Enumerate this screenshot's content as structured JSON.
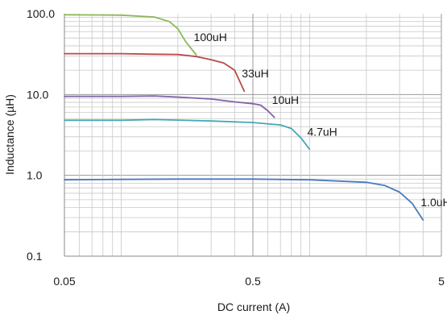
{
  "chart_data": {
    "type": "line",
    "xlabel": "DC current (A)",
    "ylabel": "Inductance (µH)",
    "x_scale": "log",
    "y_scale": "log",
    "xlim": [
      0.05,
      5
    ],
    "ylim": [
      0.1,
      100
    ],
    "x_ticks": [
      {
        "value": 0.05,
        "label": "0.05"
      },
      {
        "value": 0.5,
        "label": "0.5"
      },
      {
        "value": 5,
        "label": "5"
      }
    ],
    "y_ticks": [
      {
        "value": 0.1,
        "label": "0.1"
      },
      {
        "value": 1,
        "label": "1.0"
      },
      {
        "value": 10,
        "label": "10.0"
      },
      {
        "value": 100,
        "label": "100.0"
      }
    ],
    "grid": true,
    "series": [
      {
        "name": "100uH",
        "color": "#8db85a",
        "points": [
          [
            0.05,
            97
          ],
          [
            0.1,
            96
          ],
          [
            0.15,
            91
          ],
          [
            0.18,
            80
          ],
          [
            0.2,
            65
          ],
          [
            0.22,
            45
          ],
          [
            0.25,
            31
          ]
        ]
      },
      {
        "name": "33uH",
        "color": "#b84a48",
        "points": [
          [
            0.05,
            32
          ],
          [
            0.1,
            32
          ],
          [
            0.15,
            31.5
          ],
          [
            0.2,
            31.3
          ],
          [
            0.25,
            29.5
          ],
          [
            0.3,
            27
          ],
          [
            0.35,
            24.5
          ],
          [
            0.4,
            20
          ],
          [
            0.45,
            11
          ]
        ]
      },
      {
        "name": "10uH",
        "color": "#7f62a8",
        "points": [
          [
            0.05,
            9.5
          ],
          [
            0.1,
            9.5
          ],
          [
            0.15,
            9.6
          ],
          [
            0.2,
            9.3
          ],
          [
            0.3,
            8.8
          ],
          [
            0.4,
            8.1
          ],
          [
            0.5,
            7.7
          ],
          [
            0.55,
            7.4
          ],
          [
            0.6,
            6.3
          ],
          [
            0.65,
            5.2
          ]
        ]
      },
      {
        "name": "4.7uH",
        "color": "#44a8b4",
        "points": [
          [
            0.05,
            4.8
          ],
          [
            0.1,
            4.8
          ],
          [
            0.15,
            4.9
          ],
          [
            0.3,
            4.7
          ],
          [
            0.5,
            4.5
          ],
          [
            0.7,
            4.2
          ],
          [
            0.8,
            3.8
          ],
          [
            0.9,
            2.9
          ],
          [
            1.0,
            2.1
          ]
        ]
      },
      {
        "name": "1.0uH",
        "color": "#4a7bbd",
        "points": [
          [
            0.05,
            0.88
          ],
          [
            0.1,
            0.89
          ],
          [
            0.2,
            0.9
          ],
          [
            0.5,
            0.9
          ],
          [
            1.0,
            0.88
          ],
          [
            2.0,
            0.82
          ],
          [
            2.5,
            0.75
          ],
          [
            3.0,
            0.62
          ],
          [
            3.5,
            0.45
          ],
          [
            4.0,
            0.28
          ]
        ]
      }
    ]
  }
}
